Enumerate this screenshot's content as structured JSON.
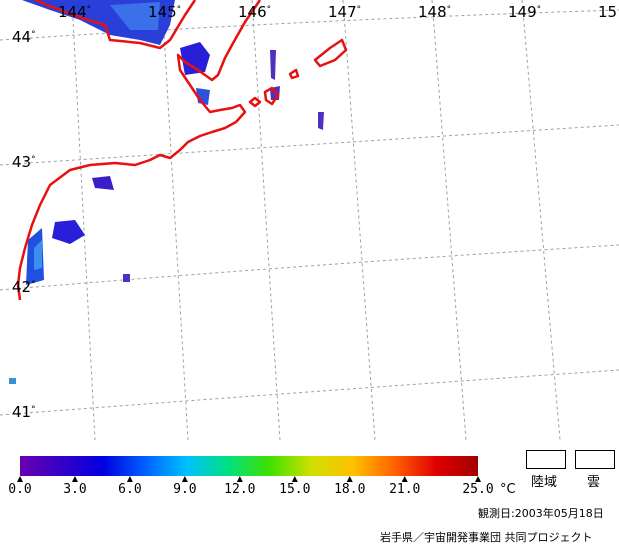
{
  "lon_labels": [
    "144",
    "145",
    "146",
    "147",
    "148",
    "149",
    "15"
  ],
  "lat_labels": [
    "44",
    "43",
    "42",
    "41"
  ],
  "degree_symbol": "°",
  "colors": {
    "coast": "#e81010",
    "grid": "#a0a0a0",
    "sst_cold": "#2a1fd8",
    "sst_cool": "#3a63e8"
  },
  "colorbar": {
    "min": 0.0,
    "max": 25.0,
    "stops": [
      "#6a00b0",
      "#3500c8",
      "#0000e0",
      "#0060ff",
      "#00c0ff",
      "#00e080",
      "#40e000",
      "#d0e000",
      "#ffc000",
      "#ff6000",
      "#e00000",
      "#a00000"
    ],
    "tick_labels": [
      "0.0",
      "3.0",
      "6.0",
      "9.0",
      "12.0",
      "15.0",
      "18.0",
      "21.0",
      "25.0"
    ],
    "unit": "°C"
  },
  "legend": {
    "land_label": "陸域",
    "cloud_label": "雲"
  },
  "observation_date": "観測日:2003年05月18日",
  "credit": "岩手県／宇宙開発事業団 共同プロジェクト"
}
